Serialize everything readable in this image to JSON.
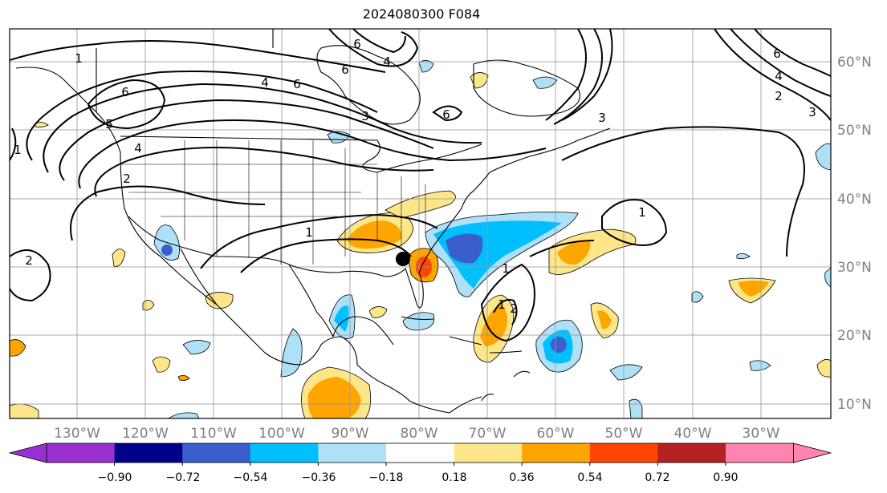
{
  "title": "2024080300 F084",
  "longitude_labels": [
    "130°W",
    "120°W",
    "110°W",
    "100°W",
    "90°W",
    "80°W",
    "70°W",
    "60°W",
    "50°W",
    "40°W",
    "30°W"
  ],
  "latitude_labels": [
    "60°N",
    "50°N",
    "40°N",
    "30°N",
    "20°N",
    "10°N"
  ],
  "colorbar": {
    "tick_labels": [
      "−0.90",
      "−0.72",
      "−0.54",
      "−0.36",
      "−0.18",
      "0.18",
      "0.36",
      "0.54",
      "0.72",
      "0.90"
    ],
    "colors": [
      "#9b30d0",
      "#00008b",
      "#3a5fcd",
      "#00bfff",
      "#aee0f8",
      "#ffffff",
      "#fde68a",
      "#ffa500",
      "#ff4500",
      "#b22222",
      "#ff85b0"
    ]
  },
  "contour_labels": [
    "1",
    "4",
    "6",
    "6",
    "4",
    "6",
    "6",
    "6",
    "5",
    "3",
    "3",
    "3",
    "4",
    "1",
    "2",
    "6",
    "4",
    "1",
    "2",
    "2",
    "1",
    "1",
    "1",
    "2"
  ],
  "colors": {
    "contour": "#000000",
    "grid": "#808080",
    "marker": "#000000"
  }
}
